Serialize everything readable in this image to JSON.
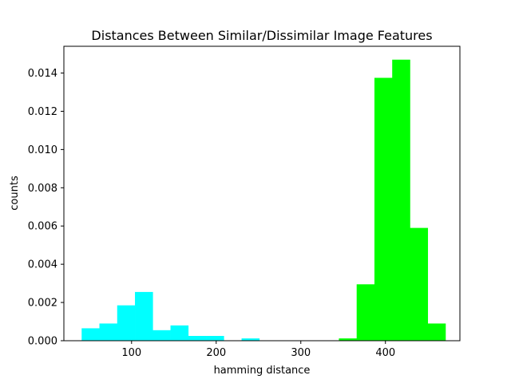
{
  "chart_data": {
    "type": "bar",
    "title": "Distances Between Similar/Dissimilar Image Features",
    "xlabel": "hamming distance",
    "ylabel": "counts",
    "xlim": [
      20,
      488
    ],
    "ylim": [
      0,
      0.0154
    ],
    "xticks": [
      100,
      200,
      300,
      400
    ],
    "yticks": [
      0.0,
      0.002,
      0.004,
      0.006,
      0.008,
      0.01,
      0.012,
      0.014
    ],
    "ytick_labels": [
      "0.000",
      "0.002",
      "0.004",
      "0.006",
      "0.008",
      "0.010",
      "0.012",
      "0.014"
    ],
    "grid": false,
    "series": [
      {
        "color": "#00ffff",
        "bins": [
          {
            "x0": 41,
            "x1": 62,
            "value": 0.00065
          },
          {
            "x0": 62,
            "x1": 83,
            "value": 0.0009
          },
          {
            "x0": 83,
            "x1": 104,
            "value": 0.00185
          },
          {
            "x0": 104,
            "x1": 125,
            "value": 0.00255
          },
          {
            "x0": 125,
            "x1": 146,
            "value": 0.00055
          },
          {
            "x0": 146,
            "x1": 167,
            "value": 0.0008
          },
          {
            "x0": 167,
            "x1": 188,
            "value": 0.00025
          },
          {
            "x0": 188,
            "x1": 209,
            "value": 0.00025
          },
          {
            "x0": 209,
            "x1": 230,
            "value": 0
          },
          {
            "x0": 230,
            "x1": 251,
            "value": 0.00012
          }
        ]
      },
      {
        "color": "#00ff00",
        "bins": [
          {
            "x0": 345,
            "x1": 366,
            "value": 0.00012
          },
          {
            "x0": 366,
            "x1": 387,
            "value": 0.00295
          },
          {
            "x0": 387,
            "x1": 408,
            "value": 0.01375
          },
          {
            "x0": 408,
            "x1": 429,
            "value": 0.0147
          },
          {
            "x0": 429,
            "x1": 450,
            "value": 0.0059
          },
          {
            "x0": 450,
            "x1": 471,
            "value": 0.0009
          }
        ]
      }
    ]
  }
}
